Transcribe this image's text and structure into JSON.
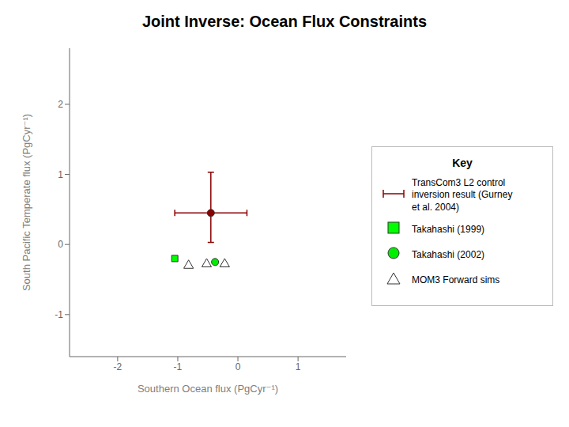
{
  "chart_data": {
    "type": "scatter",
    "title": "Joint Inverse: Ocean Flux Constraints",
    "xlabel": "Southern Ocean flux (PgCyr⁻¹)",
    "ylabel": "South Pacific Temperate flux (PgCyr⁻¹)",
    "xlim": [
      -2.8,
      1.8
    ],
    "ylim": [
      -1.6,
      2.8
    ],
    "xticks": [
      -2,
      -1,
      0,
      1
    ],
    "yticks": [
      -1,
      0,
      1,
      2
    ],
    "legend": "right",
    "legend_title": "Key",
    "series": [
      {
        "name": "TransCom3 L2 control\ninversion result (Gurney\net al. 2004)",
        "color": "#8B0000",
        "marker": "circle",
        "x": [
          -0.45
        ],
        "y": [
          0.45
        ],
        "x_error": [
          0.6
        ],
        "y_error": [
          [
            0.42,
            0.58
          ]
        ]
      },
      {
        "name": "Takahashi (1999)",
        "color": "#00FF00",
        "marker": "square",
        "x": [
          -1.05
        ],
        "y": [
          -0.2
        ]
      },
      {
        "name": "Takahashi (2002)",
        "color": "#00EE00",
        "marker": "circle",
        "x": [
          -0.38
        ],
        "y": [
          -0.25
        ]
      },
      {
        "name": "MOM3 Forward sims",
        "color": "#FFFFFF",
        "marker": "triangle",
        "x": [
          -0.82,
          -0.52,
          -0.22
        ],
        "y": [
          -0.3,
          -0.28,
          -0.28
        ]
      }
    ]
  }
}
